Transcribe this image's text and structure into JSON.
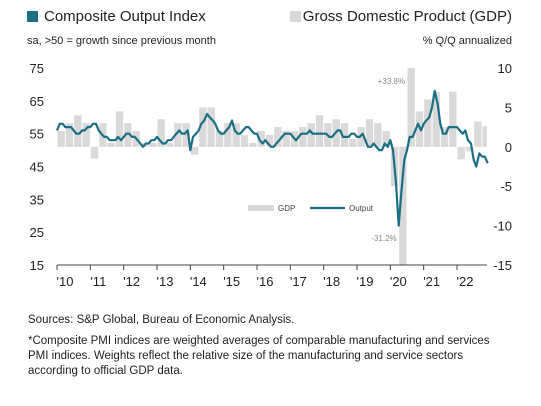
{
  "chart_data": {
    "type": "bar-line",
    "y_label": "sa, >50 = growth since previous month",
    "y2_label": "% Q/Q annualized",
    "xlim": [
      2010,
      2022.9
    ],
    "xticks": [
      {
        "value": 2010,
        "label": "'10"
      },
      {
        "value": 2011,
        "label": "'11"
      },
      {
        "value": 2012,
        "label": "'12"
      },
      {
        "value": 2013,
        "label": "'13"
      },
      {
        "value": 2014,
        "label": "'14"
      },
      {
        "value": 2015,
        "label": "'15"
      },
      {
        "value": 2016,
        "label": "'16"
      },
      {
        "value": 2017,
        "label": "'17"
      },
      {
        "value": 2018,
        "label": "'18"
      },
      {
        "value": 2019,
        "label": "'19"
      },
      {
        "value": 2020,
        "label": "'20"
      },
      {
        "value": 2021,
        "label": "'21"
      },
      {
        "value": 2022,
        "label": "'22"
      }
    ],
    "ylim": [
      15,
      75
    ],
    "yticks": [
      75,
      65,
      55,
      45,
      35,
      25,
      15
    ],
    "y2lim": [
      -15,
      10
    ],
    "y2ticks": [
      10,
      5,
      0,
      -5,
      -10,
      -15
    ],
    "legend": {
      "position": "center",
      "labels": [
        "GDP",
        "Output"
      ]
    },
    "series": [
      {
        "name": "Gross Domestic Product (GDP)",
        "type": "bar",
        "axis": "y2",
        "color": "#d9d9d9",
        "x": [
          2010,
          2010.25,
          2010.5,
          2010.75,
          2011,
          2011.25,
          2011.5,
          2011.75,
          2012,
          2012.25,
          2012.5,
          2012.75,
          2013,
          2013.25,
          2013.5,
          2013.75,
          2014,
          2014.25,
          2014.5,
          2014.75,
          2015,
          2015.25,
          2015.5,
          2015.75,
          2016,
          2016.25,
          2016.5,
          2016.75,
          2017,
          2017.25,
          2017.5,
          2017.75,
          2018,
          2018.25,
          2018.5,
          2018.75,
          2019,
          2019.25,
          2019.5,
          2019.75,
          2020,
          2020.25,
          2020.5,
          2020.75,
          2021,
          2021.25,
          2021.5,
          2021.75,
          2022,
          2022.25,
          2022.5,
          2022.75
        ],
        "values": [
          2,
          3,
          4,
          3,
          -1.5,
          3,
          0.5,
          4.5,
          3,
          2,
          0.5,
          0.5,
          3.5,
          0.5,
          3,
          3,
          -1,
          5,
          5,
          2,
          3,
          3,
          1.5,
          0.5,
          2,
          1.5,
          2.5,
          2,
          2,
          2.5,
          3,
          4,
          3,
          3.5,
          3,
          1,
          2.5,
          3.5,
          3,
          2,
          -5,
          -31.2,
          33.8,
          4.5,
          6,
          7,
          2.5,
          7,
          -1.6,
          -0.6,
          3.2,
          2.6
        ],
        "value_labels": [
          null,
          null,
          null,
          null,
          null,
          null,
          null,
          null,
          null,
          null,
          null,
          null,
          null,
          null,
          null,
          null,
          null,
          null,
          null,
          null,
          null,
          null,
          null,
          null,
          null,
          null,
          null,
          null,
          null,
          null,
          null,
          null,
          null,
          null,
          null,
          null,
          null,
          null,
          null,
          null,
          null,
          "-31.2%",
          "+33.8%",
          null,
          null,
          null,
          null,
          null,
          null,
          null,
          null,
          null
        ]
      },
      {
        "name": "Composite Output Index",
        "type": "line",
        "axis": "y",
        "color": "#1a6e85",
        "x": [
          2010,
          2010.08,
          2010.17,
          2010.25,
          2010.33,
          2010.42,
          2010.5,
          2010.58,
          2010.67,
          2010.75,
          2010.83,
          2010.92,
          2011,
          2011.08,
          2011.17,
          2011.25,
          2011.33,
          2011.42,
          2011.5,
          2011.58,
          2011.67,
          2011.75,
          2011.83,
          2011.92,
          2012,
          2012.08,
          2012.17,
          2012.25,
          2012.33,
          2012.42,
          2012.5,
          2012.58,
          2012.67,
          2012.75,
          2012.83,
          2012.92,
          2013,
          2013.08,
          2013.17,
          2013.25,
          2013.33,
          2013.42,
          2013.5,
          2013.58,
          2013.67,
          2013.75,
          2013.83,
          2013.92,
          2014,
          2014.08,
          2014.17,
          2014.25,
          2014.33,
          2014.42,
          2014.5,
          2014.58,
          2014.67,
          2014.75,
          2014.83,
          2014.92,
          2015,
          2015.08,
          2015.17,
          2015.25,
          2015.33,
          2015.42,
          2015.5,
          2015.58,
          2015.67,
          2015.75,
          2015.83,
          2015.92,
          2016,
          2016.08,
          2016.17,
          2016.25,
          2016.33,
          2016.42,
          2016.5,
          2016.58,
          2016.67,
          2016.75,
          2016.83,
          2016.92,
          2017,
          2017.08,
          2017.17,
          2017.25,
          2017.33,
          2017.42,
          2017.5,
          2017.58,
          2017.67,
          2017.75,
          2017.83,
          2017.92,
          2018,
          2018.08,
          2018.17,
          2018.25,
          2018.33,
          2018.42,
          2018.5,
          2018.58,
          2018.67,
          2018.75,
          2018.83,
          2018.92,
          2019,
          2019.08,
          2019.17,
          2019.25,
          2019.33,
          2019.42,
          2019.5,
          2019.58,
          2019.67,
          2019.75,
          2019.83,
          2019.92,
          2020,
          2020.08,
          2020.17,
          2020.25,
          2020.33,
          2020.42,
          2020.5,
          2020.58,
          2020.67,
          2020.75,
          2020.83,
          2020.92,
          2021,
          2021.08,
          2021.17,
          2021.25,
          2021.33,
          2021.42,
          2021.5,
          2021.58,
          2021.67,
          2021.75,
          2021.83,
          2021.92,
          2022,
          2022.08,
          2022.17,
          2022.25,
          2022.33,
          2022.42,
          2022.5,
          2022.58,
          2022.67,
          2022.75,
          2022.83,
          2022.92
        ],
        "values": [
          56,
          58,
          58,
          57,
          57,
          57,
          56,
          55,
          55,
          56,
          56,
          57,
          57,
          58,
          58,
          56,
          55,
          54,
          54,
          53,
          53,
          53,
          54,
          53,
          54,
          55,
          55,
          54,
          54,
          53,
          52,
          51,
          52,
          52,
          53,
          53,
          54,
          53,
          52,
          52,
          53,
          53,
          54,
          55,
          56,
          55,
          55,
          56,
          50,
          54,
          55,
          56,
          58,
          59,
          61,
          60,
          59,
          58,
          56,
          55,
          55,
          56,
          57,
          59,
          56,
          55,
          55,
          56,
          57,
          57,
          56,
          55,
          55,
          53,
          52,
          53,
          52,
          51,
          51,
          52,
          53,
          54,
          55,
          55,
          55,
          54,
          53,
          54,
          55,
          55,
          55,
          56,
          55,
          55,
          55,
          55,
          55,
          55,
          54,
          54,
          55,
          56,
          56,
          54,
          54,
          54,
          55,
          55,
          54,
          54,
          55,
          53,
          51,
          51,
          52,
          51,
          50,
          50,
          52,
          51,
          53,
          50,
          40,
          27,
          37,
          47,
          50,
          54,
          54,
          56,
          58,
          56,
          58,
          59,
          60,
          63,
          68,
          64,
          58,
          55,
          55,
          57,
          57,
          57,
          57,
          56,
          55,
          56,
          53,
          52,
          47,
          45,
          49,
          48,
          48,
          46
        ]
      }
    ],
    "sources": "Sources: S&P Global, Bureau of Economic Analysis.",
    "footnote": "*Composite PMI indices are weighted averages of comparable manufacturing and services PMI indices. Weights reflect the relative size of the manufacturing and service sectors according to official GDP data."
  }
}
